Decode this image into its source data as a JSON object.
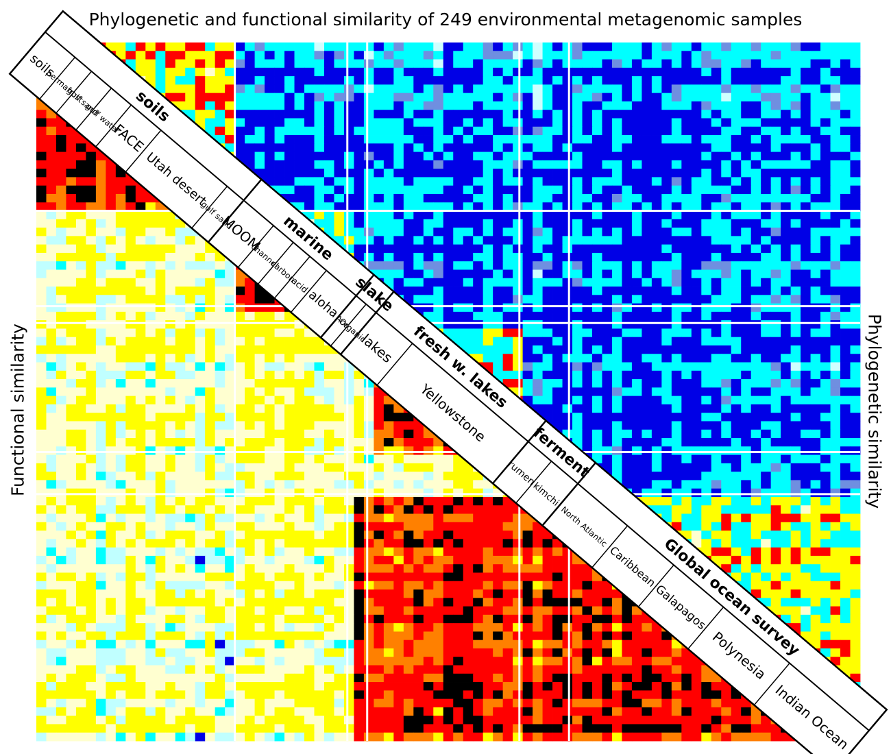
{
  "title": "Phylogenetic and functional similarity of 249 environmental metagenomic samples",
  "axes": {
    "left_label": "Functional similarity",
    "right_label": "Phylogenetic similarity"
  },
  "sample_count": 249,
  "colors": {
    "background": "#ffffff",
    "phylo_high": "#0000e6",
    "phylo_mid": "#00ffff",
    "phylo_low": "#cfffff",
    "func_low": "#ffff00",
    "func_mid": "#ff0000",
    "func_high": "#000000",
    "pale": "#ffffd0",
    "light_cyan": "#c0ffff",
    "steel": "#6f8fe0",
    "orange": "#ff8000",
    "divider": "#ffffff"
  },
  "groups": [
    {
      "name": "soils",
      "size": 60,
      "subgroups": [
        {
          "name": "soils",
          "size": 9
        },
        {
          "name": "permafrost",
          "size": 5
        },
        {
          "name": "gulf sand",
          "size": 6
        },
        {
          "name": "gulf water",
          "size": 6
        },
        {
          "name": "FACE",
          "size": 9
        },
        {
          "name": "Utah desert",
          "size": 20
        },
        {
          "name": "gulf sand",
          "size": 5
        }
      ]
    },
    {
      "name": "marine",
      "size": 34,
      "subgroups": [
        {
          "name": "MOOM",
          "size": 9
        },
        {
          "name": "channel",
          "size": 6
        },
        {
          "name": "carbon",
          "size": 5
        },
        {
          "name": "acid",
          "size": 5
        },
        {
          "name": "aloha",
          "size": 9
        }
      ]
    },
    {
      "name": "slake",
      "size": 6,
      "subgroups": [
        {
          "name": "Ace",
          "size": 3
        },
        {
          "name": "Organic",
          "size": 3
        }
      ]
    },
    {
      "name": "fresh w. lakes",
      "size": 46,
      "subgroups": [
        {
          "name": "lakes",
          "size": 11
        },
        {
          "name": "Yellowstone",
          "size": 35
        }
      ]
    },
    {
      "name": "ferment",
      "size": 15,
      "subgroups": [
        {
          "name": "rumen",
          "size": 7
        },
        {
          "name": "kimchi",
          "size": 8
        }
      ]
    },
    {
      "name": "Global ocean survey",
      "size": 88,
      "subgroups": [
        {
          "name": "North Atlantic",
          "size": 15
        },
        {
          "name": "Caribbean",
          "size": 14
        },
        {
          "name": "Galapagos",
          "size": 15
        },
        {
          "name": "Polynesia",
          "size": 20
        },
        {
          "name": "Indian Ocean",
          "size": 24
        }
      ]
    }
  ]
}
